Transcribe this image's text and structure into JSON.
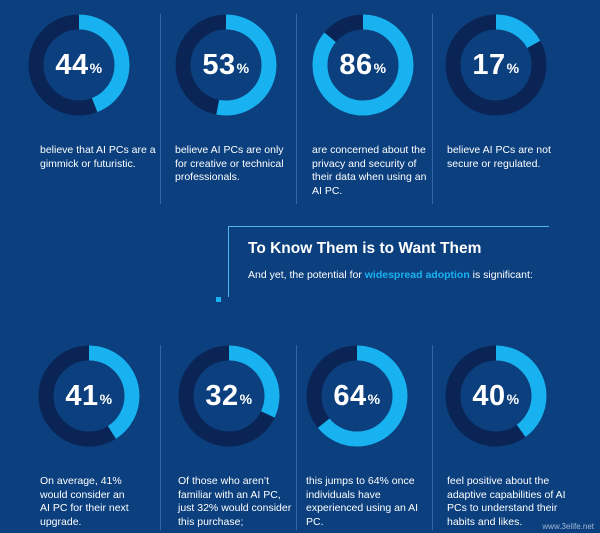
{
  "colors": {
    "background": "#0b3f7e",
    "track": "#0a2555",
    "accent": "#19b2f1"
  },
  "top_stats": [
    {
      "value": 44,
      "value_label": "44",
      "unit": "%",
      "description": "believe that AI PCs are a gimmick or futuristic."
    },
    {
      "value": 53,
      "value_label": "53",
      "unit": "%",
      "description": "believe AI PCs are only for creative or technical professionals."
    },
    {
      "value": 86,
      "value_label": "86",
      "unit": "%",
      "description": "are concerned about the privacy and security of their data when using an AI PC."
    },
    {
      "value": 17,
      "value_label": "17",
      "unit": "%",
      "description": "believe AI PCs are not secure or regulated."
    }
  ],
  "callout": {
    "heading": "To Know Them is to Want Them",
    "text_before": "And yet, the potential for ",
    "text_highlight": "widespread adoption",
    "text_after": " is significant:"
  },
  "bottom_stats": [
    {
      "value": 41,
      "value_label": "41",
      "unit": "%",
      "description": "On average, 41% would consider an AI PC for their next upgrade."
    },
    {
      "value": 32,
      "value_label": "32",
      "unit": "%",
      "description": "Of those who aren’t familiar with an AI PC, just 32% would consider this purchase;"
    },
    {
      "value": 64,
      "value_label": "64",
      "unit": "%",
      "description": "this jumps to 64% once individuals have experienced using an AI PC."
    },
    {
      "value": 40,
      "value_label": "40",
      "unit": "%",
      "description": "feel positive about the adaptive capabilities of AI PCs to understand their habits and likes."
    }
  ],
  "watermark": "www.3elife.net"
}
